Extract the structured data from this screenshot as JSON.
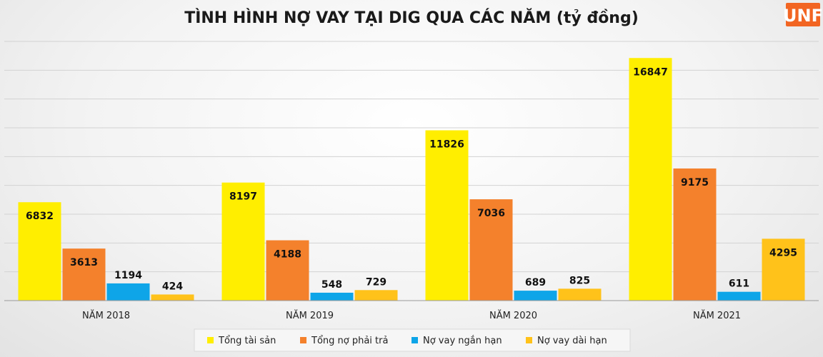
{
  "logo": {
    "text": "UNF",
    "color": "#f26522"
  },
  "chart_data": {
    "type": "bar",
    "title": "TÌNH HÌNH NỢ VAY TẠI DIG QUA CÁC NĂM (tỷ đồng)",
    "categories": [
      "NĂM 2018",
      "NĂM 2019",
      "NĂM 2020",
      "NĂM 2021"
    ],
    "series": [
      {
        "name": "Tổng tài sản",
        "color": "#ffee00",
        "values": [
          6832,
          8197,
          11826,
          16847
        ]
      },
      {
        "name": "Tổng nợ phải trả",
        "color": "#f4812c",
        "values": [
          3613,
          4188,
          7036,
          9175
        ]
      },
      {
        "name": "Nợ vay ngắn hạn",
        "color": "#0ea5e8",
        "values": [
          1194,
          548,
          689,
          611
        ]
      },
      {
        "name": "Nợ vay dài hạn",
        "color": "#ffc21a",
        "values": [
          424,
          729,
          825,
          4295
        ]
      }
    ],
    "ylim": [
      0,
      18000
    ],
    "grid": true,
    "legend_position": "bottom"
  }
}
